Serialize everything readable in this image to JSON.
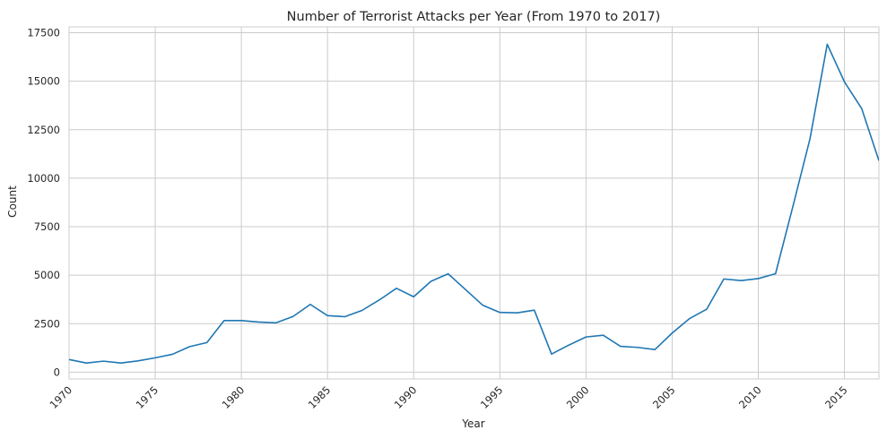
{
  "chart_data": {
    "type": "line",
    "title": "Number of Terrorist Attacks per Year (From 1970 to 2017)",
    "xlabel": "Year",
    "ylabel": "Count",
    "xlim": [
      1970,
      2017
    ],
    "ylim": [
      -350,
      17800
    ],
    "xticks": [
      1970,
      1975,
      1980,
      1985,
      1990,
      1995,
      2000,
      2005,
      2010,
      2015
    ],
    "yticks": [
      0,
      2500,
      5000,
      7500,
      10000,
      12500,
      15000,
      17500
    ],
    "grid": true,
    "line_color": "#1f77b4",
    "series": [
      {
        "x": [
          1970,
          1971,
          1972,
          1973,
          1974,
          1975,
          1976,
          1977,
          1978,
          1979,
          1980,
          1981,
          1982,
          1983,
          1984,
          1985,
          1986,
          1987,
          1988,
          1989,
          1990,
          1991,
          1992,
          1994,
          1995,
          1996,
          1997,
          1998,
          1999,
          2000,
          2001,
          2002,
          2003,
          2004,
          2005,
          2006,
          2007,
          2008,
          2009,
          2010,
          2011,
          2012,
          2013,
          2014,
          2015,
          2016,
          2017
        ],
        "values": [
          651,
          471,
          568,
          473,
          581,
          740,
          923,
          1319,
          1526,
          2662,
          2662,
          2586,
          2544,
          2870,
          3495,
          2915,
          2860,
          3183,
          3721,
          4324,
          3887,
          4683,
          5071,
          3456,
          3081,
          3058,
          3197,
          934,
          1395,
          1814,
          1906,
          1333,
          1278,
          1166,
          2017,
          2758,
          3242,
          4805,
          4721,
          4826,
          5076,
          8522,
          12036,
          16903,
          14965,
          13587,
          10900
        ]
      }
    ]
  }
}
